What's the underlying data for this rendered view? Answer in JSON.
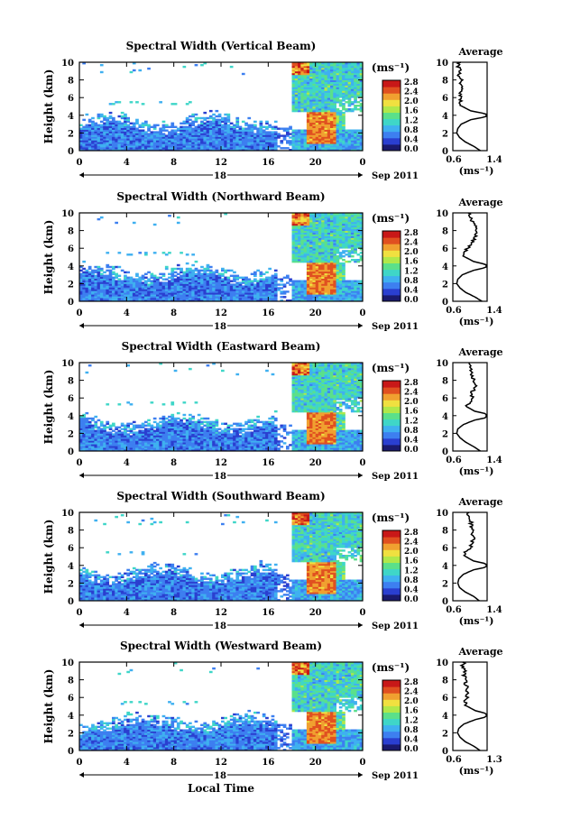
{
  "common": {
    "colorbar_unit": "(ms⁻¹)",
    "colorbar_ticks_default": [
      "0.0",
      "0.4",
      "0.8",
      "1.2",
      "1.6",
      "2.0",
      "2.4",
      "2.8"
    ],
    "colorbar_colors": [
      "#1a1a6e",
      "#2a3fd0",
      "#3d7ff0",
      "#3fb0f0",
      "#3fd6c8",
      "#5be08a",
      "#b0e84a",
      "#f0e040",
      "#f0a030",
      "#e05020",
      "#c81818"
    ],
    "time_ticks": [
      "0",
      "4",
      "8",
      "12",
      "16",
      "20",
      "0"
    ],
    "day_label": "18",
    "month_label": "Sep 2011",
    "ylabel": "Height (km)",
    "y_ticks": [
      "0",
      "2",
      "4",
      "6",
      "8",
      "10"
    ],
    "avg_title": "Average",
    "avg_xlabel": "(ms⁻¹)",
    "xlabel_bottom": "Local Time"
  },
  "chart_data": [
    {
      "type": "heatmap",
      "title": "Spectral Width (Vertical Beam)",
      "x_range_hours": [
        0,
        24
      ],
      "ylim": [
        0,
        10
      ],
      "colorbar_ticks": [
        "0.0",
        "0.4",
        "0.8",
        "1.2",
        "1.6",
        "2.0",
        "2.4",
        "2.8"
      ],
      "avg_profile": {
        "xticks": [
          "0.6",
          "1.4"
        ],
        "xlim": [
          0.6,
          1.4
        ],
        "heights": [
          0,
          0.5,
          1,
          1.5,
          2,
          2.5,
          3,
          3.5,
          4,
          4.5,
          5,
          5.5,
          6,
          6.5,
          7,
          7.5,
          8,
          8.5,
          9,
          9.5,
          10
        ],
        "values": [
          1.12,
          1.0,
          0.85,
          0.75,
          0.7,
          0.72,
          0.78,
          0.95,
          1.35,
          0.95,
          0.8,
          0.76,
          0.78,
          0.74,
          0.8,
          0.75,
          0.78,
          0.74,
          0.76,
          0.73,
          0.75
        ]
      }
    },
    {
      "type": "heatmap",
      "title": "Spectral Width (Northward Beam)",
      "x_range_hours": [
        0,
        24
      ],
      "ylim": [
        0,
        10
      ],
      "colorbar_ticks": [
        "0.0",
        "0.4",
        "0.8",
        "1.2",
        "1.6",
        "2.0",
        "2.4",
        "2.8"
      ],
      "avg_profile": {
        "xticks": [
          "0.6",
          "1.4"
        ],
        "xlim": [
          0.6,
          1.4
        ],
        "heights": [
          0,
          0.5,
          1,
          1.5,
          2,
          2.5,
          3,
          3.5,
          4,
          4.5,
          5,
          5.5,
          6,
          6.5,
          7,
          7.5,
          8,
          8.5,
          9,
          9.5,
          10
        ],
        "values": [
          1.15,
          1.02,
          0.86,
          0.76,
          0.7,
          0.72,
          0.8,
          1.0,
          1.33,
          1.0,
          0.85,
          0.82,
          0.9,
          0.95,
          1.0,
          1.05,
          1.02,
          1.06,
          0.98,
          0.95,
          0.92
        ]
      }
    },
    {
      "type": "heatmap",
      "title": "Spectral Width (Eastward Beam)",
      "x_range_hours": [
        0,
        24
      ],
      "ylim": [
        0,
        10
      ],
      "colorbar_ticks": [
        "0.0",
        "0.4",
        "0.8",
        "1.2",
        "1.6",
        "2.0",
        "2.4",
        "2.8"
      ],
      "avg_profile": {
        "xticks": [
          "0.6",
          "1.4"
        ],
        "xlim": [
          0.6,
          1.4
        ],
        "heights": [
          0,
          0.5,
          1,
          1.5,
          2,
          2.5,
          3,
          3.5,
          4,
          4.5,
          5,
          5.5,
          6,
          6.5,
          7,
          7.5,
          8,
          8.5,
          9,
          9.5,
          10
        ],
        "values": [
          1.12,
          1.0,
          0.86,
          0.76,
          0.7,
          0.72,
          0.82,
          1.02,
          1.38,
          1.02,
          0.88,
          0.92,
          0.98,
          0.95,
          1.02,
          1.05,
          1.0,
          0.98,
          0.96,
          0.94,
          0.92
        ]
      }
    },
    {
      "type": "heatmap",
      "title": "Spectral Width (Southward Beam)",
      "x_range_hours": [
        0,
        24
      ],
      "ylim": [
        0,
        10
      ],
      "colorbar_ticks": [
        "0.0",
        "0.4",
        "0.8",
        "1.2",
        "1.6",
        "2.0",
        "2.4",
        "2.8"
      ],
      "avg_profile": {
        "xticks": [
          "0.6",
          "1.4"
        ],
        "xlim": [
          0.6,
          1.4
        ],
        "heights": [
          0,
          0.5,
          1,
          1.5,
          2,
          2.5,
          3,
          3.5,
          4,
          4.5,
          5,
          5.5,
          6,
          6.5,
          7,
          7.5,
          8,
          8.5,
          9,
          9.5,
          10
        ],
        "values": [
          1.1,
          1.0,
          0.85,
          0.75,
          0.72,
          0.74,
          0.82,
          1.0,
          1.36,
          1.0,
          0.86,
          0.86,
          0.94,
          0.96,
          1.0,
          0.98,
          1.0,
          0.96,
          0.95,
          0.92,
          0.9
        ]
      }
    },
    {
      "type": "heatmap",
      "title": "Spectral Width (Westward Beam)",
      "x_range_hours": [
        0,
        24
      ],
      "ylim": [
        0,
        10
      ],
      "colorbar_ticks": [
        "0.0",
        "0.4",
        "0.8",
        "1.2",
        "1.6",
        "2.0",
        "2.4",
        "2.8"
      ],
      "avg_profile": {
        "xticks": [
          "0.6",
          "1.3"
        ],
        "xlim": [
          0.6,
          1.3
        ],
        "heights": [
          0,
          0.5,
          1,
          1.5,
          2,
          2.5,
          3,
          3.5,
          4,
          4.5,
          5,
          5.5,
          6,
          6.5,
          7,
          7.5,
          8,
          8.5,
          9,
          9.5,
          10
        ],
        "values": [
          1.05,
          0.95,
          0.82,
          0.74,
          0.7,
          0.72,
          0.8,
          0.98,
          1.25,
          0.98,
          0.85,
          0.82,
          0.86,
          0.84,
          0.86,
          0.82,
          0.84,
          0.8,
          0.82,
          0.78,
          0.8
        ]
      }
    }
  ]
}
